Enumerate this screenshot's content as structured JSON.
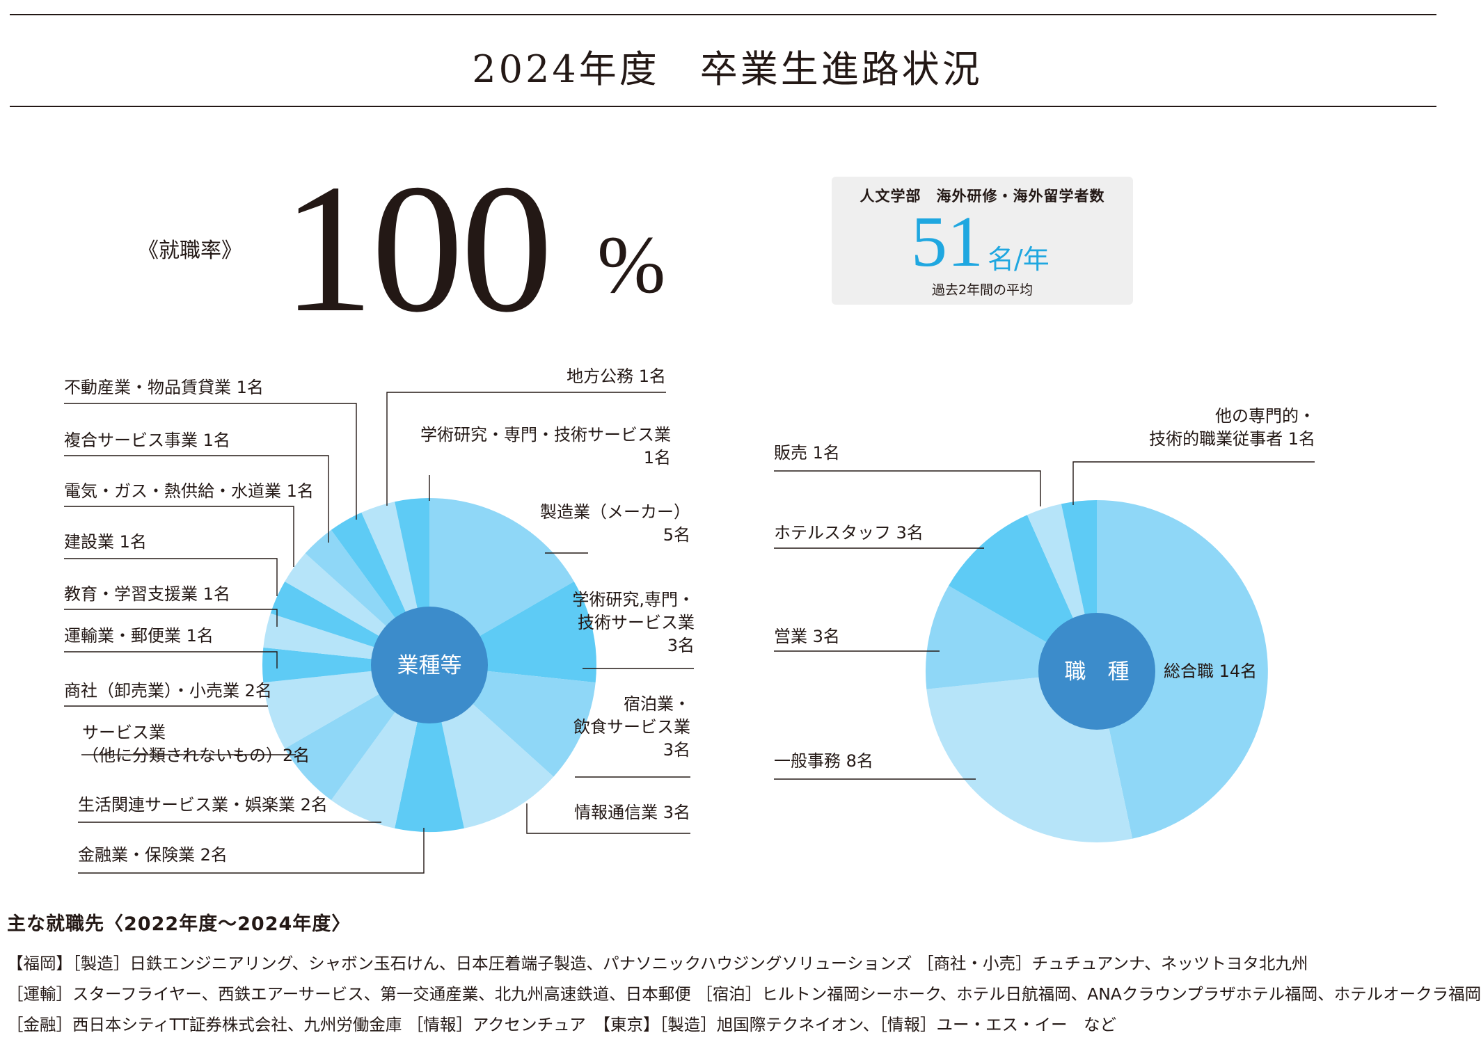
{
  "title": "2024年度　卒業生進路状況",
  "employment_rate": {
    "label": "《就職率》",
    "value": "100",
    "unit": "%"
  },
  "overseas": {
    "title": "人文学部　海外研修・海外留学者数",
    "value": "51",
    "unit": "名/年",
    "note": "過去2年間の平均"
  },
  "chart_data": [
    {
      "type": "pie",
      "center_label": "業種等",
      "slices": [
        {
          "label": "製造業（メーカー）",
          "label_lines": [
            "製造業（メーカー）",
            "5名"
          ],
          "value": 5,
          "color": "#8fd7f7"
        },
        {
          "label": "学術研究,専門・技術サービス業",
          "label_lines": [
            "学術研究,専門・",
            "技術サービス業",
            "3名"
          ],
          "value": 3,
          "color": "#5ecbf5"
        },
        {
          "label": "宿泊業・飲食サービス業",
          "label_lines": [
            "宿泊業・",
            "飲食サービス業",
            "3名"
          ],
          "value": 3,
          "color": "#8fd7f7"
        },
        {
          "label": "情報通信業",
          "label_lines": [
            "情報通信業 3名"
          ],
          "value": 3,
          "color": "#b6e4f9"
        },
        {
          "label": "金融業・保険業",
          "label_lines": [
            "金融業・保険業 2名"
          ],
          "value": 2,
          "color": "#5ecbf5"
        },
        {
          "label": "生活関連サービス業・娯楽業",
          "label_lines": [
            "生活関連サービス業・娯楽業 2名"
          ],
          "value": 2,
          "color": "#b6e4f9"
        },
        {
          "label": "サービス業（他に分類されないもの）",
          "label_lines": [
            "サービス業",
            "（他に分類されないもの）2名"
          ],
          "value": 2,
          "color": "#8fd7f7"
        },
        {
          "label": "商社（卸売業）・小売業",
          "label_lines": [
            "商社（卸売業）・小売業 2名"
          ],
          "value": 2,
          "color": "#b6e4f9"
        },
        {
          "label": "運輸業・郵便業",
          "label_lines": [
            "運輸業・郵便業 1名"
          ],
          "value": 1,
          "color": "#5ecbf5"
        },
        {
          "label": "教育・学習支援業",
          "label_lines": [
            "教育・学習支援業 1名"
          ],
          "value": 1,
          "color": "#b6e4f9"
        },
        {
          "label": "建設業",
          "label_lines": [
            "建設業 1名"
          ],
          "value": 1,
          "color": "#5ecbf5"
        },
        {
          "label": "電気・ガス・熱供給・水道業",
          "label_lines": [
            "電気・ガス・熱供給・水道業 1名"
          ],
          "value": 1,
          "color": "#b6e4f9"
        },
        {
          "label": "複合サービス事業",
          "label_lines": [
            "複合サービス事業 1名"
          ],
          "value": 1,
          "color": "#8fd7f7"
        },
        {
          "label": "不動産業・物品賃貸業",
          "label_lines": [
            "不動産業・物品賃貸業 1名"
          ],
          "value": 1,
          "color": "#5ecbf5"
        },
        {
          "label": "地方公務",
          "label_lines": [
            "地方公務 1名"
          ],
          "value": 1,
          "color": "#b6e4f9"
        },
        {
          "label": "学術研究・専門・技術サービス業",
          "label_lines": [
            "学術研究・専門・技術サービス業",
            "1名"
          ],
          "value": 1,
          "color": "#5ecbf5"
        }
      ]
    },
    {
      "type": "pie",
      "center_label": "職　種",
      "slices": [
        {
          "label": "総合職",
          "label_lines": [
            "総合職 14名"
          ],
          "value": 14,
          "color": "#8fd7f7"
        },
        {
          "label": "一般事務",
          "label_lines": [
            "一般事務 8名"
          ],
          "value": 8,
          "color": "#b6e4f9"
        },
        {
          "label": "営業",
          "label_lines": [
            "営業 3名"
          ],
          "value": 3,
          "color": "#8fd7f7"
        },
        {
          "label": "ホテルスタッフ",
          "label_lines": [
            "ホテルスタッフ 3名"
          ],
          "value": 3,
          "color": "#5ecbf5"
        },
        {
          "label": "販売",
          "label_lines": [
            "販売 1名"
          ],
          "value": 1,
          "color": "#b6e4f9"
        },
        {
          "label": "他の専門的・技術的職業従事者",
          "label_lines": [
            "他の専門的・",
            "技術的職業従事者 1名"
          ],
          "value": 1,
          "color": "#5ecbf5"
        }
      ]
    }
  ],
  "employers": {
    "title": "主な就職先〈2022年度〜2024年度〉",
    "lines": [
      "【福岡】［製造］日鉄エンジニアリング、シャボン玉石けん、日本圧着端子製造、パナソニックハウジングソリューションズ ［商社・小売］チュチュアンナ、ネッツトヨタ北九州",
      "［運輸］スターフライヤー、西鉄エアーサービス、第一交通産業、北九州高速鉄道、日本郵便 ［宿泊］ヒルトン福岡シーホーク、ホテル日航福岡、ANAクラウンプラザホテル福岡、ホテルオークラ福岡",
      "［金融］西日本シティTT証券株式会社、九州労働金庫 ［情報］アクセンチュア　【東京】［製造］旭国際テクネイオン、［情報］ユー・エス・イー　など"
    ]
  }
}
